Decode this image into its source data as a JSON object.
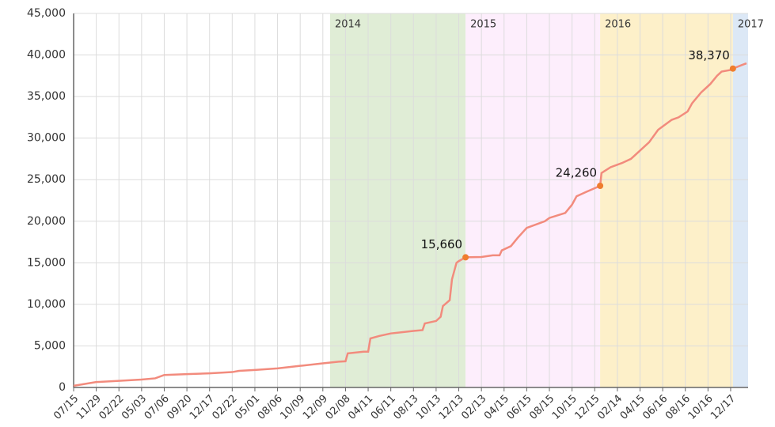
{
  "chart_data": {
    "type": "line",
    "x": [
      0,
      1,
      2,
      3,
      3.6,
      4,
      5,
      6,
      7,
      7.3,
      8,
      9,
      10,
      11,
      11.7,
      12,
      12.1,
      12.8,
      13,
      13.1,
      13.5,
      14,
      15,
      15.4,
      15.5,
      16,
      16.2,
      16.3,
      16.6,
      16.7,
      16.9,
      17,
      17.3,
      18,
      18.5,
      18.8,
      18.9,
      19.3,
      19.6,
      20,
      20.8,
      21,
      21.7,
      22,
      22.2,
      22.6,
      23.24,
      23.3,
      23.7,
      24.2,
      24.6,
      25,
      25.4,
      25.8,
      26.4,
      26.7,
      27.1,
      27.3,
      27.7,
      28.1,
      28.4,
      28.6,
      29,
      29.1,
      29.5,
      29.7
    ],
    "series": [
      {
        "color": "#f28b7d",
        "values": [
          200,
          650,
          800,
          950,
          1100,
          1500,
          1600,
          1700,
          1850,
          2000,
          2100,
          2300,
          2600,
          2900,
          3100,
          3150,
          4100,
          4300,
          4300,
          5900,
          6200,
          6500,
          6800,
          6900,
          7700,
          8000,
          8500,
          9800,
          10500,
          13000,
          15000,
          15200,
          15660,
          15700,
          15900,
          15900,
          16500,
          17000,
          18000,
          19200,
          20000,
          20400,
          21000,
          22000,
          23000,
          23500,
          24260,
          25800,
          26500,
          27000,
          27500,
          28500,
          29500,
          31000,
          32200,
          32500,
          33200,
          34200,
          35500,
          36500,
          37500,
          38000,
          38200,
          38370,
          38800,
          39000
        ]
      }
    ],
    "annotations": [
      {
        "x": 17.3,
        "y": 15660,
        "label": "15,660"
      },
      {
        "x": 23.24,
        "y": 24260,
        "label": "24,260"
      },
      {
        "x": 29.1,
        "y": 38370,
        "label": "38,370"
      }
    ],
    "annotation_color": "#ef7d2e",
    "regions": [
      {
        "label": "2014",
        "start": 11.32,
        "end": 17.3,
        "color": "#e0edd6"
      },
      {
        "label": "2015",
        "start": 17.3,
        "end": 23.24,
        "color": "#fdeefc"
      },
      {
        "label": "2016",
        "start": 23.24,
        "end": 29.1,
        "color": "#fdf0c9"
      },
      {
        "label": "2017",
        "start": 29.1,
        "end": 29.77,
        "color": "#dce8f6"
      }
    ],
    "xlim": [
      0,
      29.77
    ],
    "xticks": [
      {
        "value": 0,
        "label": "07/15"
      },
      {
        "value": 1,
        "label": "11/29"
      },
      {
        "value": 2,
        "label": "02/22"
      },
      {
        "value": 3,
        "label": "05/03"
      },
      {
        "value": 4,
        "label": "07/06"
      },
      {
        "value": 5,
        "label": "09/20"
      },
      {
        "value": 6,
        "label": "12/17"
      },
      {
        "value": 7,
        "label": "02/22"
      },
      {
        "value": 8,
        "label": "05/01"
      },
      {
        "value": 9,
        "label": "08/06"
      },
      {
        "value": 10,
        "label": "10/09"
      },
      {
        "value": 11,
        "label": "12/09"
      },
      {
        "value": 12,
        "label": "02/08"
      },
      {
        "value": 13,
        "label": "04/11"
      },
      {
        "value": 14,
        "label": "06/11"
      },
      {
        "value": 15,
        "label": "08/13"
      },
      {
        "value": 16,
        "label": "10/13"
      },
      {
        "value": 17,
        "label": "12/13"
      },
      {
        "value": 18,
        "label": "02/13"
      },
      {
        "value": 19,
        "label": "04/15"
      },
      {
        "value": 20,
        "label": "06/15"
      },
      {
        "value": 21,
        "label": "08/15"
      },
      {
        "value": 22,
        "label": "10/15"
      },
      {
        "value": 23,
        "label": "12/15"
      },
      {
        "value": 24,
        "label": "02/14"
      },
      {
        "value": 25,
        "label": "04/15"
      },
      {
        "value": 26,
        "label": "06/16"
      },
      {
        "value": 27,
        "label": "08/16"
      },
      {
        "value": 28,
        "label": "10/16"
      },
      {
        "value": 29,
        "label": "12/17"
      }
    ],
    "ylim": [
      0,
      45000
    ],
    "yticks": [
      {
        "value": 0,
        "label": "0"
      },
      {
        "value": 5000,
        "label": "5,000"
      },
      {
        "value": 10000,
        "label": "10,000"
      },
      {
        "value": 15000,
        "label": "15,000"
      },
      {
        "value": 20000,
        "label": "20,000"
      },
      {
        "value": 25000,
        "label": "25,000"
      },
      {
        "value": 30000,
        "label": "30,000"
      },
      {
        "value": 35000,
        "label": "35,000"
      },
      {
        "value": 40000,
        "label": "40,000"
      },
      {
        "value": 45000,
        "label": "45,000"
      }
    ],
    "grid": true
  }
}
